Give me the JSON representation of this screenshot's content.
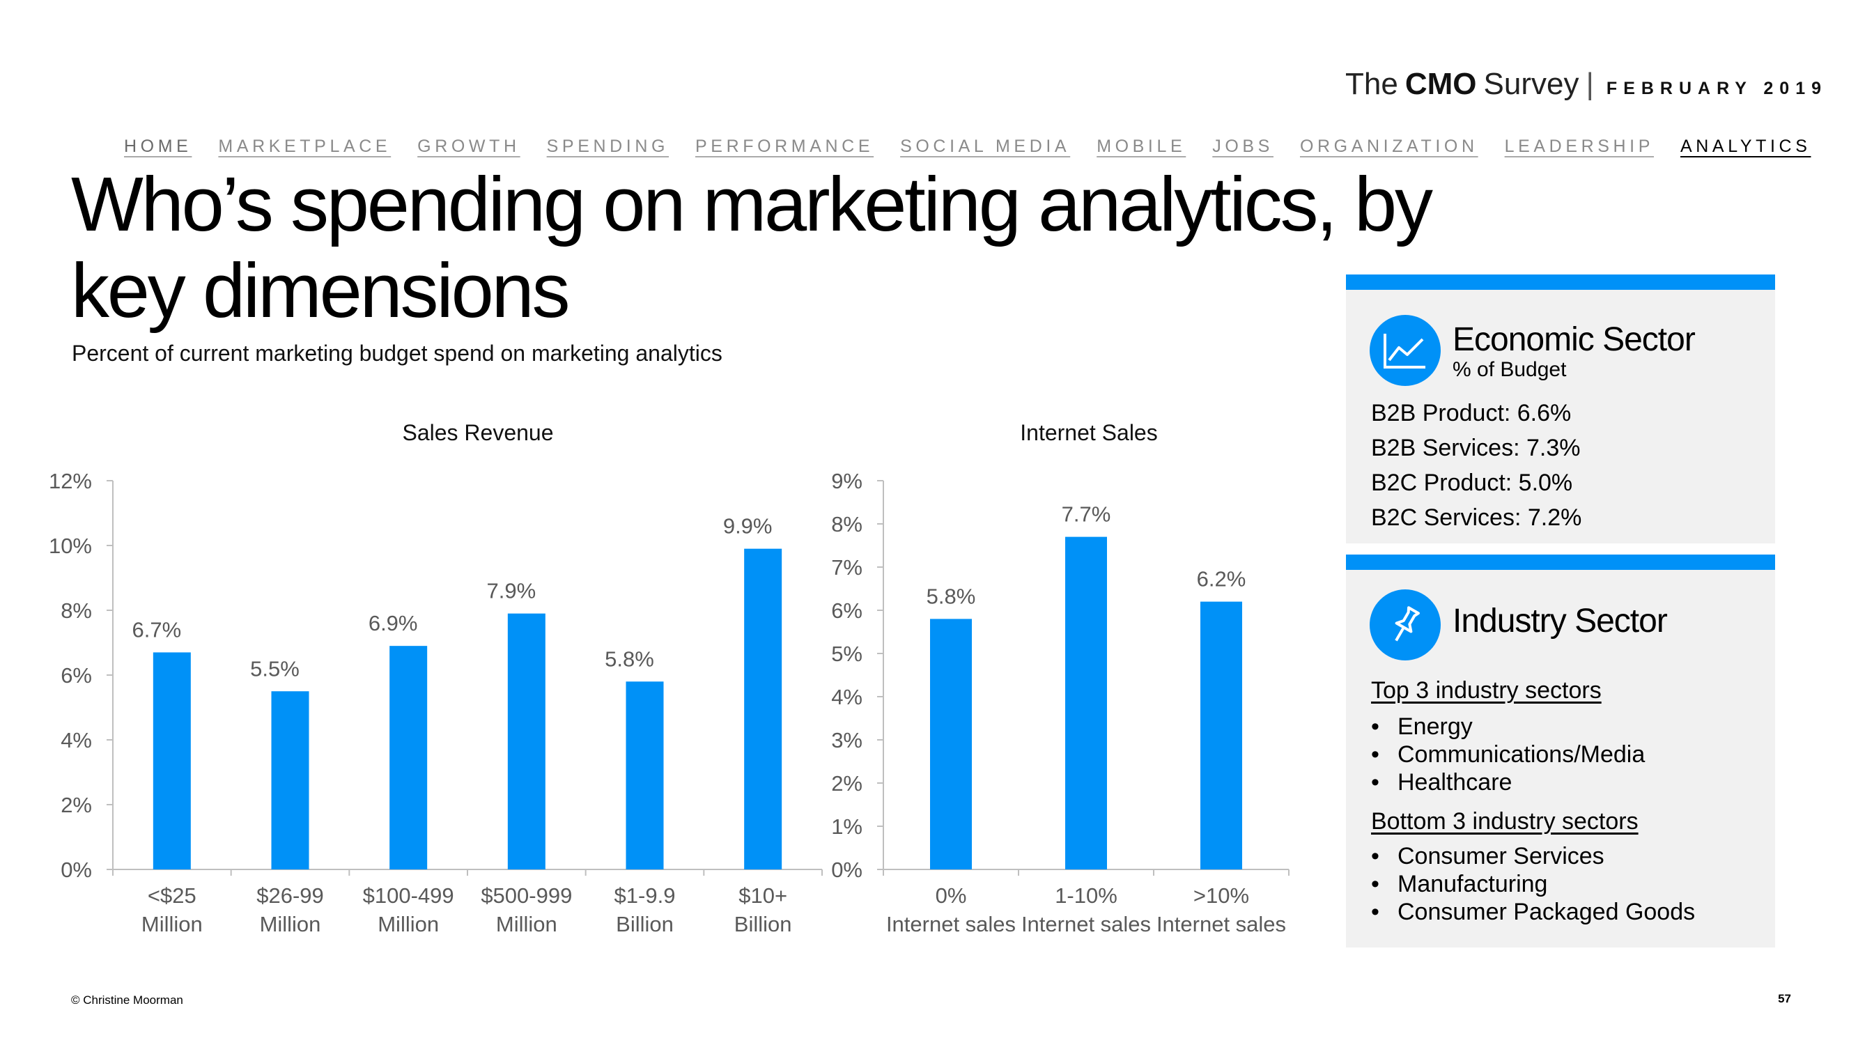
{
  "brand": {
    "prefix": "The",
    "cmo": "CMO",
    "survey": "Survey",
    "separator": "|",
    "date": "FEBRUARY 2019"
  },
  "nav": {
    "items": [
      "HOME",
      "MARKETPLACE",
      "GROWTH",
      "SPENDING",
      "PERFORMANCE",
      "SOCIAL MEDIA",
      "MOBILE",
      "JOBS",
      "ORGANIZATION",
      "LEADERSHIP",
      "ANALYTICS"
    ]
  },
  "title": "Who’s spending on marketing analytics, by key dimensions",
  "subtitle": "Percent of current marketing budget spend on marketing analytics",
  "chart_data": [
    {
      "type": "bar",
      "title": "Sales Revenue",
      "categories": [
        [
          "<$25",
          "Million"
        ],
        [
          "$26-99",
          "Million"
        ],
        [
          "$100-499",
          "Million"
        ],
        [
          "$500-999",
          "Million"
        ],
        [
          "$1-9.9",
          "Billion"
        ],
        [
          "$10+",
          "Billion"
        ]
      ],
      "values": [
        6.7,
        5.5,
        6.9,
        7.9,
        5.8,
        9.9
      ],
      "labels": [
        "6.7%",
        "5.5%",
        "6.9%",
        "7.9%",
        "5.8%",
        "9.9%"
      ],
      "yticks": [
        "0%",
        "2%",
        "4%",
        "6%",
        "8%",
        "10%",
        "12%"
      ],
      "ylim": [
        0,
        12
      ],
      "xlabel": "",
      "ylabel": "",
      "color": "#0091f7"
    },
    {
      "type": "bar",
      "title": "Internet Sales",
      "categories": [
        [
          "0%",
          "Internet sales"
        ],
        [
          "1-10%",
          "Internet sales"
        ],
        [
          ">10%",
          "Internet sales"
        ]
      ],
      "values": [
        5.8,
        7.7,
        6.2
      ],
      "labels": [
        "5.8%",
        "7.7%",
        "6.2%"
      ],
      "yticks": [
        "0%",
        "1%",
        "2%",
        "3%",
        "4%",
        "5%",
        "6%",
        "7%",
        "8%",
        "9%"
      ],
      "ylim": [
        0,
        9
      ],
      "xlabel": "",
      "ylabel": "",
      "color": "#0091f7"
    }
  ],
  "economic": {
    "icon": "line-chart-icon",
    "heading": "Economic Sector",
    "subheading": "% of Budget",
    "items": [
      "B2B Product: 6.6%",
      "B2B Services: 7.3%",
      "B2C Product: 5.0%",
      "B2C Services: 7.2%"
    ]
  },
  "industry": {
    "icon": "pushpin-icon",
    "heading": "Industry Sector",
    "top_heading": "Top 3 industry sectors",
    "top_items": [
      "Energy",
      "Communications/Media",
      "Healthcare"
    ],
    "bottom_heading": "Bottom 3 industry sectors",
    "bottom_items": [
      "Consumer Services",
      "Manufacturing",
      "Consumer Packaged Goods"
    ],
    "bullet": "•"
  },
  "footer": {
    "copyright": "© Christine Moorman",
    "page_number": "57"
  },
  "colors": {
    "accent": "#0091f7",
    "panel_bg": "#f1f1f1",
    "axis": "#bfbfbf",
    "axis_text": "#595959"
  }
}
